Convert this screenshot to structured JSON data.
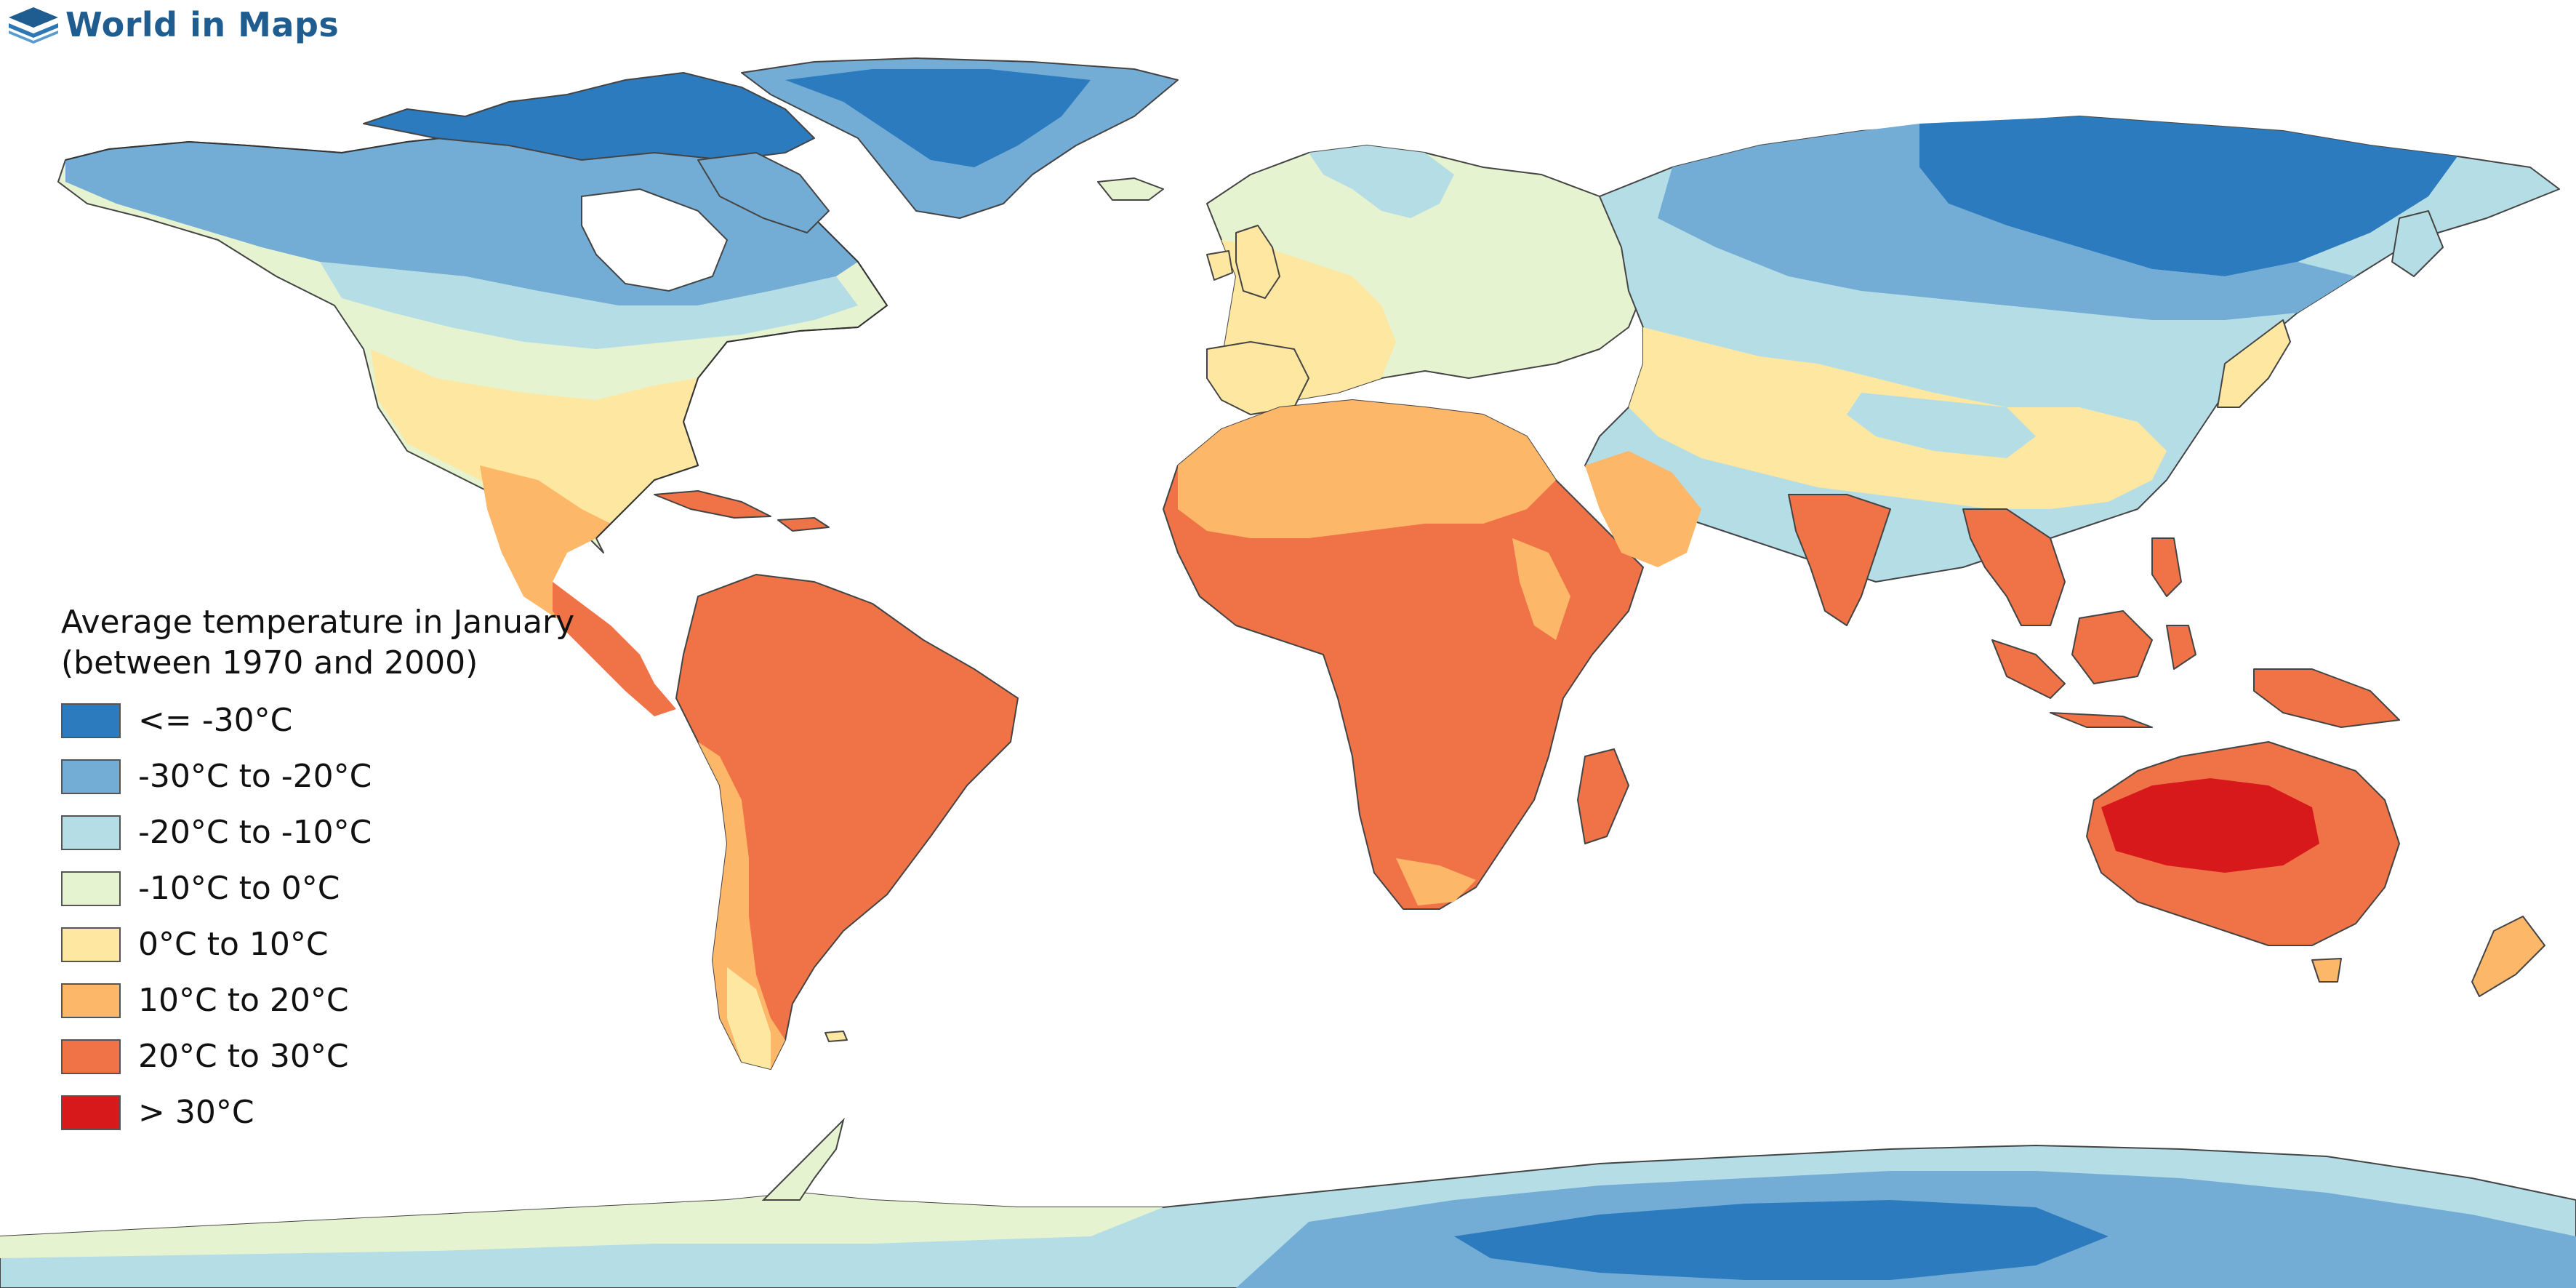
{
  "brand": {
    "name": "World in Maps",
    "icon": "layered-map-icon",
    "color": "#1f5c8f"
  },
  "legend": {
    "title_line1": "Average temperature in January",
    "title_line2": "(between 1970 and 2000)",
    "items": [
      {
        "label": "<= -30°C",
        "color": "#2c7bbe"
      },
      {
        "label": "-30°C to -20°C",
        "color": "#73add6"
      },
      {
        "label": "-20°C to -10°C",
        "color": "#b5dde6"
      },
      {
        "label": "-10°C to 0°C",
        "color": "#e6f3d0"
      },
      {
        "label": "0°C to 10°C",
        "color": "#fde7a1"
      },
      {
        "label": "10°C to 20°C",
        "color": "#fdb769"
      },
      {
        "label": "20°C to 30°C",
        "color": "#f07347"
      },
      {
        "label": "> 30°C",
        "color": "#d7191c"
      }
    ]
  }
}
